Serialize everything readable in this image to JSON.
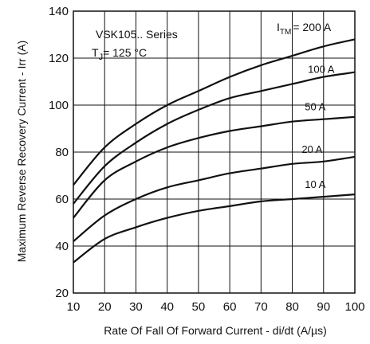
{
  "chart_data": {
    "type": "line",
    "title": "",
    "xlabel": "Rate Of Fall Of Forward Current - di/dt (A/µs)",
    "ylabel": "Maximum Reverse Recovery Current - Irr (A)",
    "xlim": [
      10,
      100
    ],
    "ylim": [
      20,
      140
    ],
    "xticks": [
      10,
      20,
      30,
      40,
      50,
      60,
      70,
      80,
      90,
      100
    ],
    "yticks": [
      20,
      40,
      60,
      80,
      100,
      120,
      140
    ],
    "grid": true,
    "annotations": {
      "series_name": "VSK105.. Series",
      "temperature_prefix": "T",
      "temperature_sub": "J",
      "temperature_value": "= 125 °C",
      "itm_prefix": "I",
      "itm_sub": "TM"
    },
    "x": [
      10,
      20,
      30,
      40,
      50,
      60,
      70,
      80,
      90,
      100
    ],
    "series": [
      {
        "name": "= 200 A",
        "values": [
          66,
          82,
          92,
          100,
          106,
          112,
          117,
          121,
          125,
          128
        ]
      },
      {
        "name": "100 A",
        "values": [
          58,
          74,
          84,
          92,
          98,
          103,
          106,
          109,
          112,
          114
        ]
      },
      {
        "name": "50 A",
        "values": [
          52,
          68,
          76,
          82,
          86,
          89,
          91,
          93,
          94,
          95
        ]
      },
      {
        "name": "20 A",
        "values": [
          42,
          53,
          60,
          65,
          68,
          71,
          73,
          75,
          76,
          78
        ]
      },
      {
        "name": "10 A",
        "values": [
          33,
          43,
          48,
          52,
          55,
          57,
          59,
          60,
          61,
          62
        ]
      }
    ]
  }
}
